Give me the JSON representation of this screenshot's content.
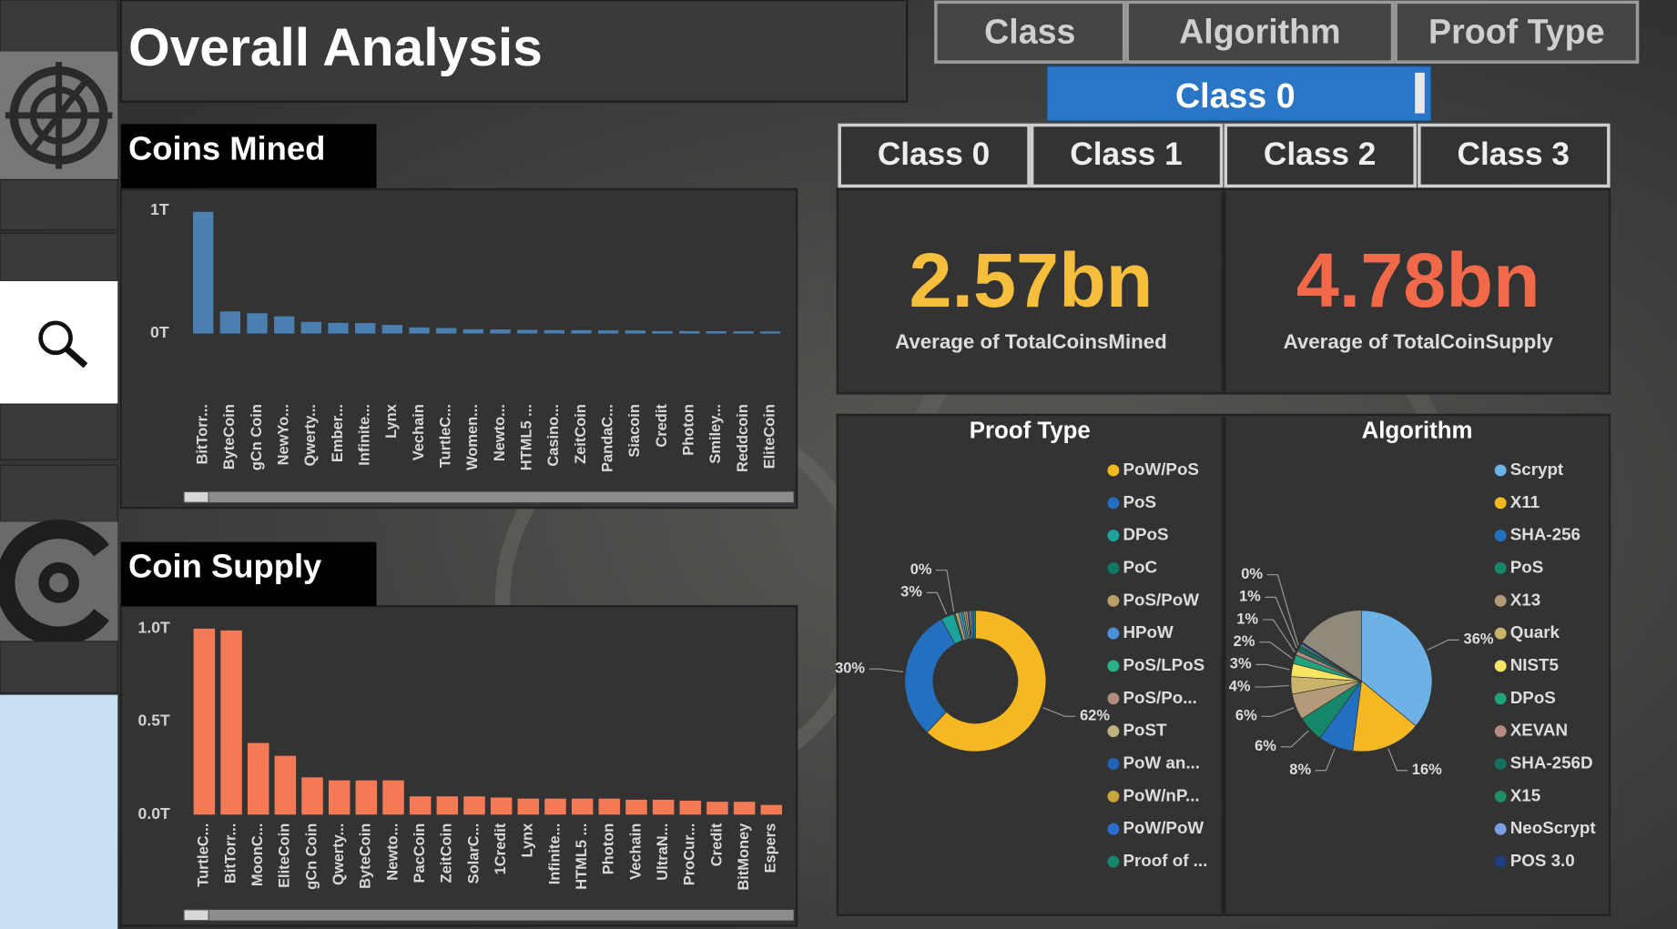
{
  "header": {
    "title": "Overall Analysis"
  },
  "tabs": [
    "Class",
    "Algorithm",
    "Proof Type"
  ],
  "slicer": {
    "selected": "Class 0"
  },
  "class_buttons": [
    "Class 0",
    "Class 1",
    "Class 2",
    "Class 3"
  ],
  "kpis": [
    {
      "value": "2.57bn",
      "label": "Average of TotalCoinsMined",
      "color": "#f6be3a"
    },
    {
      "value": "4.78bn",
      "label": "Average of TotalCoinSupply",
      "color": "#f2694a"
    }
  ],
  "chart_data": [
    {
      "type": "bar",
      "title": "Coins Mined",
      "color": "#4a7fb0",
      "categories": [
        "BitTorr...",
        "ByteCoin",
        "gCn Coin",
        "NewYo...",
        "Qwerty...",
        "Ember...",
        "Infinite...",
        "Lynx",
        "Vechain",
        "TurtleC...",
        "Women...",
        "Newto...",
        "HTML5 ...",
        "Casino...",
        "ZeitCoin",
        "PandaC...",
        "Siacoin",
        "Credit",
        "Photon",
        "Smiley...",
        "Reddcoin",
        "EliteCoin"
      ],
      "values": [
        990000000000,
        180000000000,
        165000000000,
        140000000000,
        95000000000,
        87000000000,
        85000000000,
        70000000000,
        50000000000,
        45000000000,
        35000000000,
        33000000000,
        30000000000,
        28000000000,
        27000000000,
        26000000000,
        25000000000,
        20000000000,
        20000000000,
        19000000000,
        18000000000,
        17000000000
      ],
      "ylim": [
        0,
        1000000000000
      ],
      "yticks": [
        {
          "value": 0,
          "label": "0T"
        },
        {
          "value": 1000000000000,
          "label": "1T"
        }
      ]
    },
    {
      "type": "bar",
      "title": "Coin Supply",
      "color": "#f47a55",
      "categories": [
        "TurtleC...",
        "BitTorr...",
        "MoonC...",
        "EliteCoin",
        "gCn Coin",
        "Qwerty...",
        "ByteCoin",
        "Newto...",
        "PacCoin",
        "ZeitCoin",
        "SolarC...",
        "1Credit",
        "Lynx",
        "Infinite...",
        "HTML5 ...",
        "Photon",
        "Vechain",
        "UltraN...",
        "ProCur...",
        "Credit",
        "BitMoney",
        "Espers"
      ],
      "values": [
        1000000000000,
        990000000000,
        385000000000,
        316000000000,
        200000000000,
        184000000000,
        184000000000,
        184000000000,
        98000000000,
        98000000000,
        98000000000,
        92000000000,
        86000000000,
        86000000000,
        86000000000,
        86000000000,
        80000000000,
        80000000000,
        75000000000,
        69000000000,
        69000000000,
        52000000000
      ],
      "ylim": [
        0,
        1000000000000
      ],
      "yticks": [
        {
          "value": 0,
          "label": "0.0T"
        },
        {
          "value": 500000000000,
          "label": "0.5T"
        },
        {
          "value": 1000000000000,
          "label": "1.0T"
        }
      ]
    },
    {
      "type": "donut",
      "title": "Proof Type",
      "categories": [
        "PoW/PoS",
        "PoS",
        "DPoS",
        "PoC",
        "PoS/PoW",
        "HPoW",
        "PoS/LPoS",
        "PoS/Po...",
        "PoST",
        "PoW an...",
        "PoW/nP...",
        "PoW/PoW",
        "Proof of ..."
      ],
      "values": [
        62,
        30,
        3,
        0.4,
        0.8,
        0.6,
        0.5,
        0.5,
        0.4,
        0.4,
        0.4,
        0.5,
        0.5
      ],
      "value_labels": [
        "62%",
        "30%",
        "3%",
        "0%",
        null,
        null,
        null,
        null,
        null,
        null,
        null,
        null,
        null
      ],
      "colors": [
        "#f5b820",
        "#2470c0",
        "#1ba39c",
        "#117865",
        "#b8a068",
        "#4a8fdc",
        "#2bb08a",
        "#b08d7d",
        "#c2b280",
        "#1f64b8",
        "#c8a83a",
        "#2d6fd1",
        "#17876a"
      ]
    },
    {
      "type": "pie",
      "title": "Algorithm",
      "categories": [
        "Scrypt",
        "X11",
        "SHA-256",
        "PoS",
        "X13",
        "Quark",
        "NIST5",
        "DPoS",
        "XEVAN",
        "SHA-256D",
        "X15",
        "NeoScrypt",
        "POS 3.0"
      ],
      "values": [
        36,
        16,
        8,
        6,
        6,
        4,
        3,
        2,
        1,
        1,
        0.4,
        0.4,
        0.4
      ],
      "value_labels": [
        "36%",
        "16%",
        "8%",
        "6%",
        "6%",
        "4%",
        "3%",
        "2%",
        "1%",
        "1%",
        "0%",
        null,
        null
      ],
      "colors": [
        "#6cb2e6",
        "#f5b820",
        "#2470c0",
        "#17876a",
        "#b39a78",
        "#c9b46c",
        "#f7e463",
        "#21a37e",
        "#b48a82",
        "#16705e",
        "#1e8f62",
        "#7c9fe0",
        "#1e3f80"
      ]
    }
  ]
}
